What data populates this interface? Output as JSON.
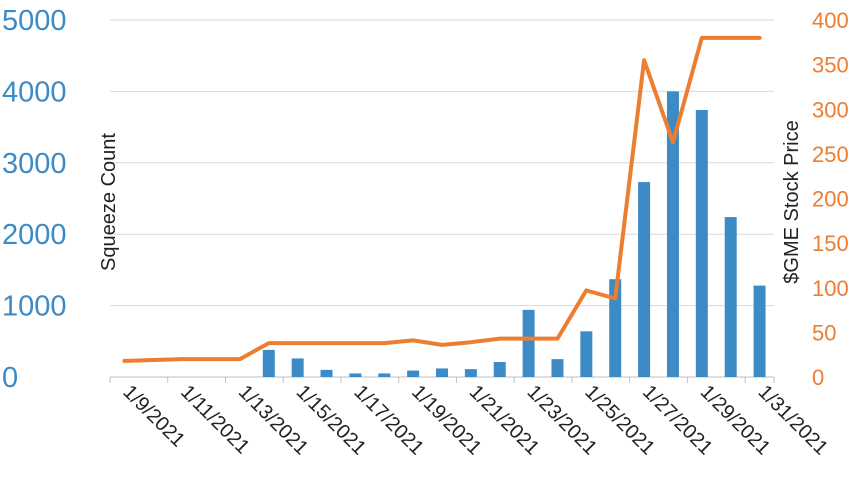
{
  "chart_data": {
    "type": "bar",
    "combo": "bar + line on secondary axis",
    "categories": [
      "1/9/2021",
      "1/10/2021",
      "1/11/2021",
      "1/12/2021",
      "1/13/2021",
      "1/14/2021",
      "1/15/2021",
      "1/16/2021",
      "1/17/2021",
      "1/18/2021",
      "1/19/2021",
      "1/20/2021",
      "1/21/2021",
      "1/22/2021",
      "1/23/2021",
      "1/24/2021",
      "1/25/2021",
      "1/26/2021",
      "1/27/2021",
      "1/28/2021",
      "1/29/2021",
      "1/30/2021",
      "1/31/2021"
    ],
    "x_tick_labels": [
      "1/9/2021",
      "1/11/2021",
      "1/13/2021",
      "1/15/2021",
      "1/17/2021",
      "1/19/2021",
      "1/21/2021",
      "1/23/2021",
      "1/25/2021",
      "1/27/2021",
      "1/29/2021",
      "1/31/2021"
    ],
    "x_tick_every": 2,
    "series": [
      {
        "name": "Squeeze Count",
        "axis": "left",
        "kind": "bar",
        "color": "#3d8bc6",
        "values": [
          0,
          0,
          0,
          0,
          0,
          380,
          260,
          100,
          50,
          50,
          90,
          120,
          110,
          210,
          940,
          250,
          640,
          1370,
          2730,
          4000,
          3740,
          2240,
          1280
        ]
      },
      {
        "name": "$GME Stock Price",
        "axis": "right",
        "kind": "line",
        "color": "#ed7d31",
        "values": [
          18,
          19,
          20,
          20,
          20,
          38,
          38,
          38,
          38,
          38,
          41,
          36,
          39,
          43,
          43,
          43,
          97,
          88,
          355,
          263,
          380,
          380,
          380
        ]
      }
    ],
    "ylabel": "Squeeze Count",
    "ylabel_right": "$GME Stock Price",
    "ylim": [
      0,
      5000
    ],
    "yticks": [
      0,
      1000,
      2000,
      3000,
      4000,
      5000
    ],
    "ylim_right": [
      0,
      400
    ],
    "yticks_right": [
      0,
      50,
      100,
      150,
      200,
      250,
      300,
      350,
      400
    ],
    "grid": true,
    "legend": "none",
    "colors": {
      "bars": "#3d8bc6",
      "line": "#ed7d31",
      "grid": "#d9d9d9"
    }
  }
}
